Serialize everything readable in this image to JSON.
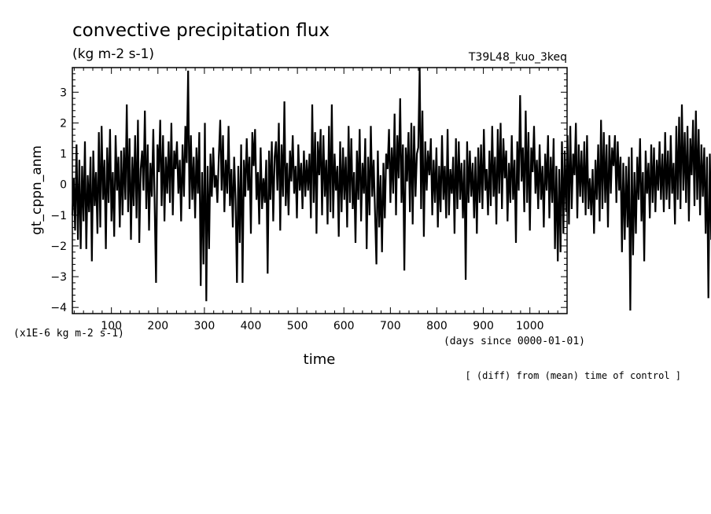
{
  "header": {
    "title": "convective precipitation flux",
    "units": "(kg m-2 s-1)",
    "experiment": "T39L48_kuo_3keq"
  },
  "footer": {
    "y_scale_note": "(x1E-6 kg m-2 s-1)",
    "x_unit_note": "(days since 0000-01-01)",
    "operation_note": "[ (diff) from (mean) time of control ]"
  },
  "chart_data": {
    "type": "line",
    "title": "convective precipitation flux",
    "subtitle": "(kg m-2 s-1)",
    "xlabel": "time",
    "ylabel": "gt_cppn_anm",
    "xlim": [
      16,
      1080
    ],
    "ylim": [
      -4.2,
      3.8
    ],
    "xticks": [
      100,
      200,
      300,
      400,
      500,
      600,
      700,
      800,
      900,
      1000
    ],
    "yticks": [
      -4,
      -3,
      -2,
      -1,
      0,
      1,
      2,
      3
    ],
    "grid": false,
    "series": [
      {
        "values_start_x": 16,
        "values_step_x": 3,
        "values": [
          -1.0,
          0.2,
          -1.5,
          1.3,
          -1.8,
          0.8,
          -2.1,
          0.6,
          -1.2,
          1.4,
          -2.1,
          0.3,
          -0.9,
          0.9,
          -2.5,
          1.1,
          -0.7,
          0.4,
          -1.6,
          1.7,
          -1.4,
          1.9,
          -0.5,
          0.8,
          -2.1,
          1.2,
          -0.6,
          1.8,
          -1.2,
          0.4,
          -1.7,
          1.6,
          -0.2,
          0.9,
          -1.4,
          1.1,
          -1.0,
          1.2,
          -0.5,
          2.6,
          -0.9,
          1.5,
          -1.8,
          0.9,
          -0.7,
          1.6,
          -1.1,
          2.1,
          -1.9,
          0.5,
          1.1,
          -0.2,
          2.4,
          -0.8,
          1.3,
          -1.5,
          0.7,
          -0.4,
          1.8,
          -0.6,
          -3.2,
          1.3,
          0.4,
          2.1,
          -0.7,
          1.6,
          -1.2,
          0.9,
          -0.3,
          1.4,
          -0.6,
          2.0,
          -1.0,
          1.1,
          0.5,
          1.4,
          -0.3,
          0.8,
          -1.2,
          1.3,
          -0.4,
          1.9,
          0.7,
          3.7,
          -0.8,
          1.6,
          -0.5,
          0.9,
          -1.1,
          1.2,
          -0.3,
          1.7,
          -3.3,
          0.4,
          -2.6,
          2.0,
          -3.8,
          0.6,
          -2.1,
          1.0,
          -0.4,
          1.2,
          -0.1,
          0.3,
          -0.6,
          0.9,
          2.1,
          -0.2,
          1.6,
          -0.9,
          0.8,
          -0.3,
          1.9,
          -0.7,
          0.5,
          -1.4,
          0.9,
          -0.5,
          -3.2,
          0.6,
          -1.9,
          1.3,
          -3.2,
          0.8,
          -0.4,
          1.5,
          -0.2,
          0.9,
          -1.6,
          1.7,
          0.6,
          1.8,
          -0.5,
          0.4,
          -1.3,
          1.2,
          -0.8,
          0.2,
          -0.6,
          0.8,
          -2.9,
          1.1,
          -0.5,
          1.4,
          -1.2,
          0.9,
          1.4,
          -0.2,
          2.0,
          -1.5,
          1.3,
          -0.4,
          2.7,
          -0.7,
          0.7,
          -1.0,
          1.1,
          0.1,
          1.6,
          -0.3,
          0.6,
          -1.1,
          1.3,
          -0.2,
          0.7,
          -0.8,
          1.1,
          -0.4,
          0.8,
          -0.2,
          1.0,
          -1.1,
          2.6,
          -0.6,
          1.7,
          -1.6,
          1.4,
          0.3,
          1.8,
          -1.0,
          1.6,
          -0.4,
          0.8,
          -1.3,
          1.9,
          -0.9,
          2.6,
          -1.1,
          1.0,
          -0.2,
          0.6,
          -1.7,
          1.4,
          -0.9,
          1.2,
          -0.5,
          0.9,
          -1.4,
          1.9,
          -0.6,
          1.5,
          -0.8,
          0.4,
          -1.9,
          1.1,
          -0.5,
          1.8,
          -1.2,
          0.7,
          -0.3,
          1.5,
          -2.1,
          0.9,
          -1.0,
          1.9,
          -0.4,
          0.8,
          -0.9,
          -2.6,
          1.1,
          -1.4,
          0.3,
          -2.2,
          0.7,
          -1.1,
          1.0,
          0.5,
          1.8,
          -0.6,
          1.2,
          -0.3,
          2.3,
          -1.0,
          1.6,
          0.2,
          2.8,
          -0.6,
          1.3,
          -2.8,
          1.2,
          0.1,
          1.7,
          -0.9,
          2.0,
          -1.3,
          1.9,
          -0.4,
          1.0,
          1.2,
          3.8,
          -0.8,
          2.4,
          -1.7,
          1.4,
          -0.2,
          1.1,
          0.3,
          1.5,
          -1.0,
          0.8,
          -0.6,
          1.2,
          -1.4,
          0.6,
          -0.9,
          1.6,
          -0.5,
          0.6,
          -1.1,
          1.8,
          -1.0,
          0.5,
          -0.3,
          0.9,
          -1.6,
          1.5,
          -0.8,
          1.4,
          -0.5,
          0.7,
          -1.1,
          0.8,
          -3.1,
          1.4,
          -0.6,
          1.1,
          -0.4,
          0.7,
          -1.1,
          0.9,
          -1.6,
          1.2,
          -0.6,
          1.3,
          -0.8,
          1.8,
          -0.2,
          0.5,
          -1.0,
          1.1,
          -0.7,
          1.9,
          -0.4,
          0.9,
          -1.3,
          1.8,
          -0.3,
          2.0,
          -0.8,
          1.5,
          0.2,
          1.1,
          -1.2,
          0.7,
          -0.6,
          1.6,
          -0.5,
          0.8,
          -1.9,
          1.4,
          -0.2,
          2.9,
          0.1,
          1.2,
          -0.9,
          2.4,
          -0.6,
          1.7,
          -1.5,
          1.2,
          0.4,
          1.9,
          -0.3,
          0.8,
          -0.8,
          1.3,
          -0.5,
          0.6,
          -1.4,
          1.0,
          -0.2,
          1.6,
          -1.1,
          0.9,
          -0.6,
          1.5,
          -2.1,
          0.6,
          -2.5,
          0.5,
          -2.2,
          1.4,
          -1.6,
          1.1,
          -0.9,
          1.6,
          -1.3,
          1.9,
          -0.8,
          1.0,
          0.3,
          2.0,
          -1.1,
          1.3,
          -0.4,
          1.1,
          -0.6,
          1.4,
          -1.0,
          1.6,
          -0.8,
          0.2,
          -1.0,
          0.5,
          -1.6,
          0.8,
          -0.5,
          1.3,
          -1.2,
          2.1,
          -0.8,
          1.7,
          -0.6,
          1.3,
          -1.4,
          1.6,
          -0.3,
          1.2,
          0.6,
          1.6,
          -0.6,
          1.4,
          -0.2,
          0.9,
          -2.2,
          0.7,
          -1.8,
          0.6,
          -1.4,
          0.9,
          -4.1,
          1.2,
          -2.3,
          0.4,
          -1.6,
          0.9,
          -0.5,
          1.5,
          -1.2,
          0.4,
          -2.5,
          1.1,
          -0.3,
          0.7,
          -1.1,
          1.3,
          -0.6,
          1.2,
          -0.9,
          0.8,
          -0.2,
          1.4,
          -0.5,
          1.0,
          -0.9,
          1.7,
          -0.5,
          1.1,
          -0.8,
          1.6,
          -0.3,
          0.7,
          -1.3,
          1.9,
          -0.5,
          2.2,
          -0.8,
          2.6,
          -0.2,
          1.7,
          -0.6,
          1.9,
          -1.2,
          1.5,
          0.3,
          2.1,
          -0.7,
          2.4,
          -0.5,
          1.8,
          -1.0,
          1.3,
          -0.4,
          1.2,
          -1.6,
          0.9,
          -3.7,
          1.0,
          -1.8,
          1.4,
          -0.6,
          1.8,
          -1.1,
          0.7,
          -0.8,
          0.5,
          -1.7,
          1.3,
          -0.6,
          1.0,
          -0.9,
          1.4,
          -0.4,
          0.7,
          -1.1,
          1.2,
          -0.3,
          1.9,
          -0.7,
          1.6,
          -0.2,
          0.8,
          -1.3,
          1.7,
          -0.7,
          2.6,
          -0.4,
          1.2,
          -1.0,
          1.5,
          -0.6,
          0.9,
          -0.5,
          0.6,
          -1.6,
          1.1,
          -0.8,
          1.6,
          -1.8,
          3.5,
          -1.0,
          1.3,
          -0.6,
          1.0,
          -2.7,
          0.8,
          -3.2,
          0.2,
          -1.6
        ]
      }
    ]
  }
}
